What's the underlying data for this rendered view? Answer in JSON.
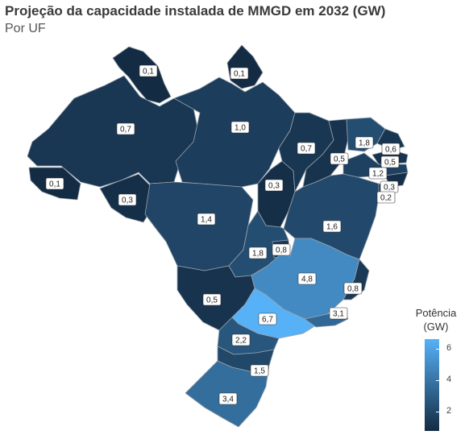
{
  "title": "Projeção da capacidade instalada de MMGD em 2032 (GW)",
  "subtitle": "Por UF",
  "legend": {
    "title_line1": "Potência",
    "title_line2": "(GW)",
    "ticks": [
      "6",
      "4",
      "2"
    ],
    "low_color": "#132b43",
    "high_color": "#56b1f7"
  },
  "states": [
    {
      "id": "RR",
      "value": 0.1,
      "label": "0,1"
    },
    {
      "id": "AP",
      "value": 0.1,
      "label": "0,1"
    },
    {
      "id": "AM",
      "value": 0.7,
      "label": "0,7"
    },
    {
      "id": "PA",
      "value": 1.0,
      "label": "1,0"
    },
    {
      "id": "AC",
      "value": 0.1,
      "label": "0,1"
    },
    {
      "id": "RO",
      "value": 0.3,
      "label": "0,3"
    },
    {
      "id": "TO",
      "value": 0.3,
      "label": "0,3"
    },
    {
      "id": "MA",
      "value": 0.7,
      "label": "0,7"
    },
    {
      "id": "PI",
      "value": 0.5,
      "label": "0,5"
    },
    {
      "id": "CE",
      "value": 1.8,
      "label": "1,8"
    },
    {
      "id": "RN",
      "value": 0.6,
      "label": "0,6"
    },
    {
      "id": "PB",
      "value": 0.5,
      "label": "0,5"
    },
    {
      "id": "PE",
      "value": 1.2,
      "label": "1,2"
    },
    {
      "id": "AL",
      "value": 0.3,
      "label": "0,3"
    },
    {
      "id": "SE",
      "value": 0.2,
      "label": "0,2"
    },
    {
      "id": "BA",
      "value": 1.6,
      "label": "1,6"
    },
    {
      "id": "MT",
      "value": 1.4,
      "label": "1,4"
    },
    {
      "id": "GO",
      "value": 1.8,
      "label": "1,8"
    },
    {
      "id": "DF",
      "value": 0.8,
      "label": "0,8"
    },
    {
      "id": "MG",
      "value": 4.8,
      "label": "4,8"
    },
    {
      "id": "ES",
      "value": 0.8,
      "label": "0,8"
    },
    {
      "id": "MS",
      "value": 0.5,
      "label": "0,5"
    },
    {
      "id": "SP",
      "value": 6.7,
      "label": "6,7"
    },
    {
      "id": "RJ",
      "value": 3.1,
      "label": "3,1"
    },
    {
      "id": "PR",
      "value": 2.2,
      "label": "2,2"
    },
    {
      "id": "SC",
      "value": 1.5,
      "label": "1,5"
    },
    {
      "id": "RS",
      "value": 3.4,
      "label": "3,4"
    }
  ]
}
